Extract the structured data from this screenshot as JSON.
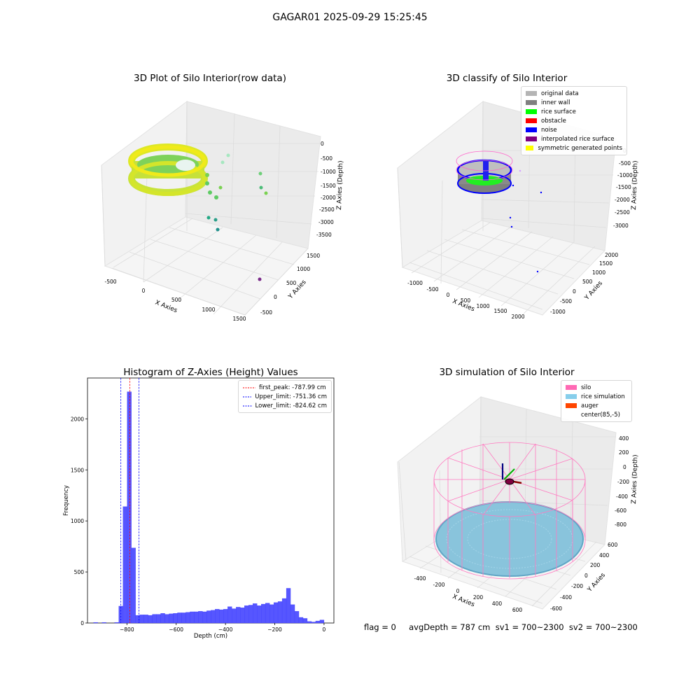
{
  "suptitle": "GAGAR01 2025-09-29 15:25:45",
  "footer": "flag = 0     avgDepth = 787 cm  sv1 = 700~2300  sv2 = 700~2300",
  "chart_data": [
    {
      "type": "scatter",
      "title": "3D Plot of Silo Interior(row data)",
      "xlabel": "X Axies",
      "ylabel": "Y Axies",
      "zlabel": "Z Axies (Depth)",
      "x_ticks": [
        "-500",
        "0",
        "500",
        "1000",
        "1500"
      ],
      "y_ticks": [
        "-500",
        "0",
        "500",
        "1000",
        "1500"
      ],
      "z_ticks": [
        "0",
        "-500",
        "-1000",
        "-1500",
        "-2000",
        "-2500",
        "-3000",
        "-3500"
      ],
      "colormap": "viridis",
      "description_points": [
        {
          "x": 0,
          "y": 0,
          "z": -800
        },
        {
          "x": 1300,
          "y": 1100,
          "z": -700
        },
        {
          "x": 1400,
          "y": 1000,
          "z": -1500
        },
        {
          "x": 900,
          "y": 200,
          "z": -2800
        },
        {
          "x": 1250,
          "y": -300,
          "z": -3500
        }
      ]
    },
    {
      "type": "scatter",
      "title": "3D classify of Silo Interior",
      "xlabel": "X Axies",
      "ylabel": "Y Axies",
      "zlabel": "Z Axies (Depth)",
      "x_ticks": [
        "-1000",
        "-500",
        "0",
        "500",
        "1000",
        "1500",
        "2000"
      ],
      "y_ticks": [
        "-1000",
        "-500",
        "0",
        "500",
        "1000",
        "1500",
        "2000"
      ],
      "z_ticks": [
        "0",
        "-500",
        "-1000",
        "-1500",
        "-2000",
        "-2500",
        "-3000"
      ],
      "legend": [
        {
          "label": "original data",
          "color": "#b4b4b4"
        },
        {
          "label": "inner wall",
          "color": "#808080"
        },
        {
          "label": "rice surface",
          "color": "#00ff00"
        },
        {
          "label": "obstacle",
          "color": "#ff0000"
        },
        {
          "label": "noise",
          "color": "#0000ff"
        },
        {
          "label": "interpolated rice surface",
          "color": "#800080"
        },
        {
          "label": "symmetric generated points",
          "color": "#ffff00"
        }
      ],
      "legend_placement": "top-right"
    },
    {
      "type": "bar",
      "title": "Histogram of Z-Axies (Height) Values",
      "xlabel": "Depth (cm)",
      "ylabel": "Frequency",
      "xlim": [
        -960,
        40
      ],
      "ylim": [
        0,
        2400
      ],
      "x_ticks": [
        -800,
        -600,
        -400,
        -200,
        0
      ],
      "y_ticks": [
        0,
        500,
        1000,
        1500,
        2000
      ],
      "bar_color": "#4d4dff",
      "bins": [
        {
          "x0": -935,
          "x1": -918,
          "v": 6
        },
        {
          "x0": -901,
          "x1": -884,
          "v": 6
        },
        {
          "x0": -850,
          "x1": -833,
          "v": 6
        },
        {
          "x0": -833,
          "x1": -816,
          "v": 165
        },
        {
          "x0": -816,
          "x1": -799,
          "v": 1140
        },
        {
          "x0": -799,
          "x1": -782,
          "v": 2265
        },
        {
          "x0": -782,
          "x1": -765,
          "v": 735
        },
        {
          "x0": -765,
          "x1": -748,
          "v": 75
        },
        {
          "x0": -748,
          "x1": -731,
          "v": 80
        },
        {
          "x0": -731,
          "x1": -714,
          "v": 80
        },
        {
          "x0": -714,
          "x1": -697,
          "v": 75
        },
        {
          "x0": -697,
          "x1": -680,
          "v": 85
        },
        {
          "x0": -680,
          "x1": -663,
          "v": 85
        },
        {
          "x0": -663,
          "x1": -646,
          "v": 95
        },
        {
          "x0": -646,
          "x1": -629,
          "v": 85
        },
        {
          "x0": -629,
          "x1": -612,
          "v": 90
        },
        {
          "x0": -612,
          "x1": -595,
          "v": 95
        },
        {
          "x0": -595,
          "x1": -578,
          "v": 100
        },
        {
          "x0": -578,
          "x1": -561,
          "v": 100
        },
        {
          "x0": -561,
          "x1": -544,
          "v": 105
        },
        {
          "x0": -544,
          "x1": -527,
          "v": 110
        },
        {
          "x0": -527,
          "x1": -510,
          "v": 110
        },
        {
          "x0": -510,
          "x1": -493,
          "v": 115
        },
        {
          "x0": -493,
          "x1": -476,
          "v": 110
        },
        {
          "x0": -476,
          "x1": -459,
          "v": 120
        },
        {
          "x0": -459,
          "x1": -442,
          "v": 125
        },
        {
          "x0": -442,
          "x1": -425,
          "v": 135
        },
        {
          "x0": -425,
          "x1": -408,
          "v": 130
        },
        {
          "x0": -408,
          "x1": -391,
          "v": 135
        },
        {
          "x0": -391,
          "x1": -374,
          "v": 160
        },
        {
          "x0": -374,
          "x1": -357,
          "v": 140
        },
        {
          "x0": -357,
          "x1": -340,
          "v": 155
        },
        {
          "x0": -340,
          "x1": -323,
          "v": 150
        },
        {
          "x0": -323,
          "x1": -306,
          "v": 170
        },
        {
          "x0": -306,
          "x1": -289,
          "v": 175
        },
        {
          "x0": -289,
          "x1": -272,
          "v": 190
        },
        {
          "x0": -272,
          "x1": -255,
          "v": 170
        },
        {
          "x0": -255,
          "x1": -238,
          "v": 185
        },
        {
          "x0": -238,
          "x1": -221,
          "v": 195
        },
        {
          "x0": -221,
          "x1": -204,
          "v": 180
        },
        {
          "x0": -204,
          "x1": -187,
          "v": 200
        },
        {
          "x0": -187,
          "x1": -170,
          "v": 210
        },
        {
          "x0": -170,
          "x1": -153,
          "v": 240
        },
        {
          "x0": -153,
          "x1": -136,
          "v": 340
        },
        {
          "x0": -136,
          "x1": -119,
          "v": 180
        },
        {
          "x0": -119,
          "x1": -102,
          "v": 115
        },
        {
          "x0": -102,
          "x1": -85,
          "v": 55
        },
        {
          "x0": -85,
          "x1": -68,
          "v": 45
        },
        {
          "x0": -68,
          "x1": -51,
          "v": 15
        },
        {
          "x0": -51,
          "x1": -34,
          "v": 10
        },
        {
          "x0": -34,
          "x1": -17,
          "v": 20
        },
        {
          "x0": -17,
          "x1": 0,
          "v": 30
        }
      ],
      "vlines": [
        {
          "label": "first_peak: -787.99 cm",
          "x": -787.99,
          "color": "#ff0000"
        },
        {
          "label": "Upper_limit: -751.36 cm",
          "x": -751.36,
          "color": "#0000ff"
        },
        {
          "label": "Lower_limit: -824.62 cm",
          "x": -824.62,
          "color": "#0000ff"
        }
      ],
      "legend_placement": "top-right"
    },
    {
      "type": "scatter",
      "title": "3D simulation of Silo Interior",
      "xlabel": "X Axies",
      "ylabel": "Y Axies",
      "zlabel": "Z Axies (Depth)",
      "x_ticks": [
        "-400",
        "-200",
        "0",
        "200",
        "400",
        "600"
      ],
      "y_ticks": [
        "-600",
        "-400",
        "-200",
        "0",
        "200",
        "400",
        "600"
      ],
      "z_ticks": [
        "400",
        "200",
        "0",
        "-200",
        "-400",
        "-600",
        "-800"
      ],
      "legend": [
        {
          "label": "silo",
          "color": "#ff69b4"
        },
        {
          "label": "rice simulation",
          "color": "#87ceeb"
        },
        {
          "label": "auger",
          "color": "#ff4500"
        },
        {
          "label": "center(85,-5)",
          "color": ""
        }
      ],
      "legend_placement": "top-right"
    }
  ]
}
